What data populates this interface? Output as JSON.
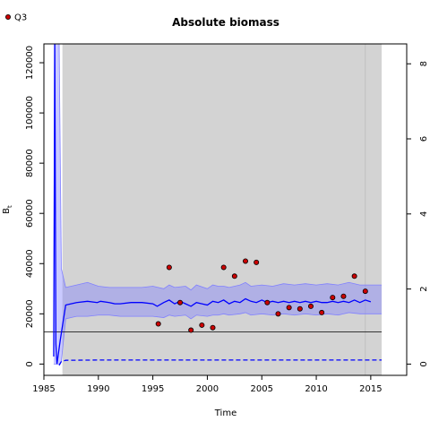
{
  "chart_data": {
    "type": "line",
    "title": "Absolute biomass",
    "xlabel": "Time",
    "ylabel": "Bt",
    "ylabel_main": "B",
    "ylabel_sub": "t",
    "xlim": [
      1985,
      2018.3
    ],
    "ylim": [
      -4500,
      127500
    ],
    "y2lim": [
      -0.3,
      8.53
    ],
    "x_ticks": [
      1985,
      1990,
      1995,
      2000,
      2005,
      2010,
      2015
    ],
    "y_ticks": [
      0,
      20000,
      40000,
      60000,
      80000,
      100000,
      120000
    ],
    "y2_ticks": [
      0,
      2,
      4,
      6,
      8
    ],
    "shaded_region": {
      "x_start": 1986.7,
      "x_end": 2016,
      "color": "#d3d3d3"
    },
    "vertical_line": {
      "x": 2014.5,
      "color": "#bfbfbf"
    },
    "reference_line": {
      "y": 12800,
      "color": "#000000"
    },
    "legend": {
      "position": "top-left",
      "entries": [
        {
          "label": "Q3",
          "color": "#cc0000"
        }
      ]
    },
    "series": [
      {
        "name": "Q3",
        "kind": "points",
        "color": "#cc0000",
        "x": [
          1995.5,
          1996.5,
          1997.5,
          1998.5,
          1999.5,
          2000.5,
          2001.5,
          2002.5,
          2003.5,
          2004.5,
          2005.5,
          2006.5,
          2007.5,
          2008.5,
          2009.5,
          2010.5,
          2011.5,
          2012.5,
          2013.5,
          2014.5
        ],
        "y": [
          16000,
          38500,
          24500,
          13500,
          15500,
          14500,
          38500,
          35000,
          41000,
          40500,
          24500,
          20000,
          22500,
          22000,
          23000,
          20500,
          26500,
          27000,
          35000,
          29000
        ]
      },
      {
        "name": "biomass",
        "kind": "line",
        "color": "#0000ff",
        "x": [
          1985.9,
          1986.0,
          1986.1,
          1986.2,
          1986.5,
          1987.0,
          1987.5,
          1988.0,
          1989.0,
          1989.9,
          1990.2,
          1991.0,
          1991.5,
          1992.0,
          1993.0,
          1994.0,
          1995.0,
          1995.4,
          1996.0,
          1996.5,
          1997.0,
          1997.5,
          1998.0,
          1998.5,
          1999.0,
          1999.5,
          2000.0,
          2000.5,
          2001.0,
          2001.5,
          2002.0,
          2002.5,
          2003.0,
          2003.5,
          2004.0,
          2004.5,
          2005.0,
          2005.5,
          2006.0,
          2006.5,
          2007.0,
          2007.5,
          2008.0,
          2008.5,
          2009.0,
          2009.5,
          2010.0,
          2010.5,
          2011.0,
          2011.5,
          2012.0,
          2012.5,
          2013.0,
          2013.5,
          2014.0,
          2014.5,
          2015.0
        ],
        "y": [
          3000,
          130000,
          8000,
          0,
          9500,
          23500,
          24000,
          24500,
          25000,
          24500,
          25000,
          24500,
          24000,
          24000,
          24500,
          24500,
          24000,
          23000,
          24500,
          25500,
          24000,
          25000,
          24000,
          23000,
          24500,
          24000,
          23500,
          25000,
          24500,
          25500,
          24000,
          25000,
          24500,
          26000,
          25000,
          24500,
          25500,
          24500,
          25000,
          24500,
          25000,
          24500,
          25000,
          24500,
          25000,
          24500,
          25000,
          24500,
          24500,
          25000,
          24500,
          25000,
          24500,
          25500,
          24500,
          25500,
          24800
        ]
      },
      {
        "name": "upper",
        "kind": "band-upper",
        "color": "#8080ff",
        "x": [
          1985.9,
          1986.1,
          1986.4,
          1986.6,
          1987.0,
          1987.5,
          1988.0,
          1989.0,
          1990.0,
          1991.0,
          1992.0,
          1993.0,
          1994.0,
          1995.0,
          1996.0,
          1996.5,
          1997.0,
          1998.0,
          1998.5,
          1999.0,
          2000.0,
          2000.5,
          2001.0,
          2001.5,
          2002.0,
          2003.0,
          2003.5,
          2004.0,
          2005.0,
          2006.0,
          2007.0,
          2008.0,
          2009.0,
          2010.0,
          2011.0,
          2012.0,
          2013.0,
          2014.0,
          2015.0,
          2016.0
        ],
        "y": [
          132000,
          132000,
          132000,
          38000,
          30500,
          31000,
          31500,
          32500,
          31000,
          30500,
          30500,
          30500,
          30500,
          31000,
          30000,
          31500,
          30500,
          31000,
          29500,
          31500,
          30000,
          31500,
          31000,
          31000,
          30500,
          31500,
          32500,
          31000,
          31500,
          31000,
          32000,
          31500,
          32000,
          31500,
          32000,
          31500,
          32500,
          31500,
          31500,
          31500
        ]
      },
      {
        "name": "lower",
        "kind": "band-lower",
        "color": "#8080ff",
        "x": [
          1985.9,
          1986.1,
          1986.4,
          1986.6,
          1987.0,
          1987.5,
          1988.0,
          1989.0,
          1990.0,
          1991.0,
          1992.0,
          1993.0,
          1994.0,
          1995.0,
          1996.0,
          1996.5,
          1997.0,
          1998.0,
          1998.5,
          1999.0,
          2000.0,
          2000.5,
          2001.0,
          2001.5,
          2002.0,
          2003.0,
          2003.5,
          2004.0,
          2005.0,
          2006.0,
          2007.0,
          2008.0,
          2009.0,
          2010.0,
          2011.0,
          2012.0,
          2013.0,
          2014.0,
          2015.0,
          2016.0
        ],
        "y": [
          0,
          0,
          0,
          1000,
          18000,
          18500,
          19000,
          19000,
          19500,
          19500,
          19000,
          19000,
          19000,
          19000,
          18500,
          19500,
          19000,
          19500,
          18000,
          19500,
          19000,
          19500,
          19500,
          20000,
          19500,
          20000,
          20500,
          19500,
          20000,
          19500,
          20000,
          19500,
          20000,
          19500,
          20000,
          19500,
          20500,
          20000,
          20000,
          20000
        ]
      },
      {
        "name": "dashed",
        "kind": "dashed-line",
        "color": "#0000ff",
        "x": [
          1986.4,
          1986.6,
          1987.0,
          1990.0,
          1995.0,
          2000.0,
          2005.0,
          2010.0,
          2015.0,
          2016.0
        ],
        "y": [
          -500,
          1000,
          1500,
          1600,
          1600,
          1600,
          1600,
          1600,
          1600,
          1600
        ]
      }
    ]
  }
}
